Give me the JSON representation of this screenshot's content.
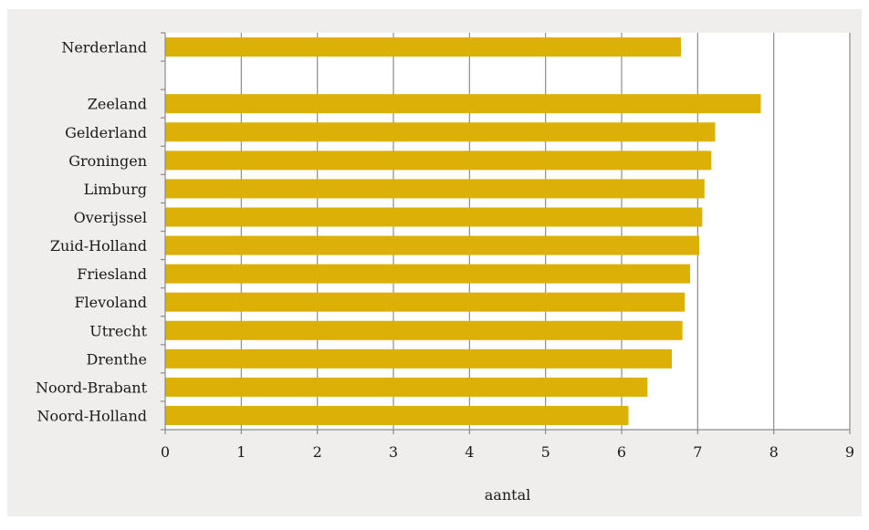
{
  "chart_data": {
    "type": "bar",
    "orientation": "horizontal",
    "title": "",
    "xlabel": "aantal",
    "ylabel": "",
    "xlim": [
      0,
      9
    ],
    "xticks": [
      0,
      1,
      2,
      3,
      4,
      5,
      6,
      7,
      8,
      9
    ],
    "grid": true,
    "categories": [
      "Nerderland",
      "",
      "Zeeland",
      "Gelderland",
      "Groningen",
      "Limburg",
      "Overijssel",
      "Zuid-Holland",
      "Friesland",
      "Flevoland",
      "Utrecht",
      "Drenthe",
      "Noord-Brabant",
      "Noord-Holland"
    ],
    "values": [
      6.78,
      null,
      7.83,
      7.23,
      7.18,
      7.09,
      7.06,
      7.02,
      6.9,
      6.83,
      6.8,
      6.66,
      6.34,
      6.09
    ],
    "bar_color": "#dcb006",
    "grid_color": "#8c8c8c",
    "background_color": "#efeeed",
    "plot_background_color": "#ffffff"
  }
}
